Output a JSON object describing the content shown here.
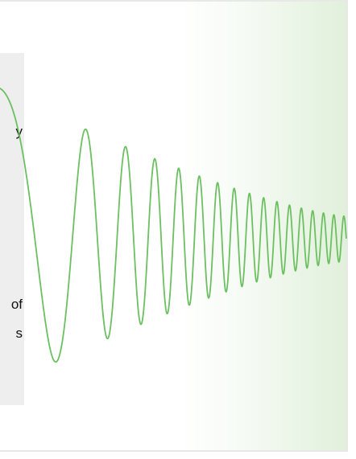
{
  "panel": {
    "fragments": [
      "y",
      "of",
      "s"
    ]
  },
  "illustration": {
    "icon": "chirp-wave-illustration",
    "stroke_color": "#6cc062",
    "background_tint": "#e3f1dd"
  }
}
